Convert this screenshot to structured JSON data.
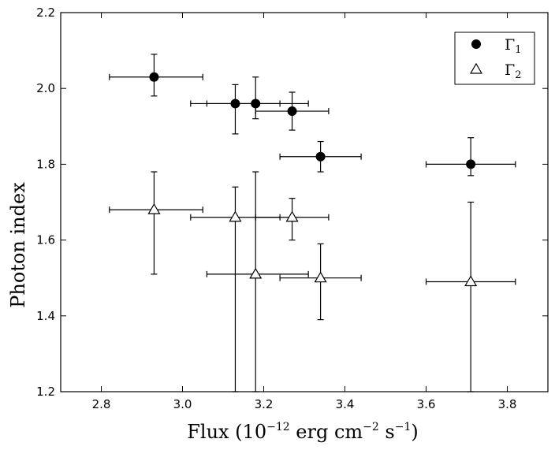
{
  "chart_data": {
    "type": "scatter",
    "title": "",
    "xlabel_parts": {
      "main": "Flux (10",
      "exp1": "−12",
      "mid": " erg cm",
      "exp2": "−2",
      "mid2": " s",
      "exp3": "−1",
      "end": ")"
    },
    "ylabel": "Photon index",
    "xlim": [
      2.7,
      3.9
    ],
    "ylim": [
      1.2,
      2.2
    ],
    "x_ticks": [
      2.8,
      3.0,
      3.2,
      3.4,
      3.6,
      3.8
    ],
    "x_tick_labels": [
      "2.8",
      "3.0",
      "3.2",
      "3.4",
      "3.6",
      "3.8"
    ],
    "y_ticks": [
      1.2,
      1.4,
      1.6,
      1.8,
      2.0,
      2.2
    ],
    "y_tick_labels": [
      "1.2",
      "1.4",
      "1.6",
      "1.8",
      "2.0",
      "2.2"
    ],
    "grid": false,
    "legend_position": "top-right",
    "series": [
      {
        "name": "Γ1",
        "legend_base": "Γ",
        "legend_sub": "1",
        "marker": "filled-circle",
        "points": [
          {
            "x": 2.93,
            "y": 2.03,
            "xerr": [
              0.11,
              0.12
            ],
            "yerr": [
              0.05,
              0.06
            ]
          },
          {
            "x": 3.13,
            "y": 1.96,
            "xerr": [
              0.11,
              0.11
            ],
            "yerr": [
              0.08,
              0.05
            ]
          },
          {
            "x": 3.18,
            "y": 1.96,
            "xerr": [
              0.12,
              0.13
            ],
            "yerr": [
              0.04,
              0.07
            ]
          },
          {
            "x": 3.27,
            "y": 1.94,
            "xerr": [
              0.09,
              0.09
            ],
            "yerr": [
              0.05,
              0.05
            ]
          },
          {
            "x": 3.34,
            "y": 1.82,
            "xerr": [
              0.1,
              0.1
            ],
            "yerr": [
              0.04,
              0.04
            ]
          },
          {
            "x": 3.71,
            "y": 1.8,
            "xerr": [
              0.11,
              0.11
            ],
            "yerr": [
              0.03,
              0.07
            ]
          }
        ]
      },
      {
        "name": "Γ2",
        "legend_base": "Γ",
        "legend_sub": "2",
        "marker": "open-triangle",
        "points": [
          {
            "x": 2.93,
            "y": 1.68,
            "xerr": [
              0.11,
              0.12
            ],
            "yerr": [
              0.17,
              0.1
            ]
          },
          {
            "x": 3.13,
            "y": 1.66,
            "xerr": [
              0.11,
              0.11
            ],
            "yerr": [
              0.46,
              0.08
            ]
          },
          {
            "x": 3.18,
            "y": 1.51,
            "xerr": [
              0.12,
              0.13
            ],
            "yerr": [
              0.31,
              0.27
            ]
          },
          {
            "x": 3.27,
            "y": 1.66,
            "xerr": [
              0.09,
              0.09
            ],
            "yerr": [
              0.06,
              0.05
            ]
          },
          {
            "x": 3.34,
            "y": 1.5,
            "xerr": [
              0.1,
              0.1
            ],
            "yerr": [
              0.11,
              0.09
            ]
          },
          {
            "x": 3.71,
            "y": 1.49,
            "xerr": [
              0.11,
              0.11
            ],
            "yerr": [
              0.29,
              0.21
            ]
          }
        ]
      }
    ]
  }
}
